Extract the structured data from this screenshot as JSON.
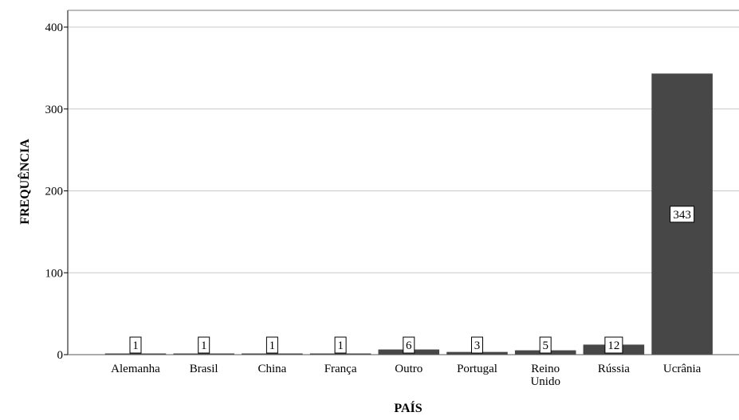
{
  "chart_data": {
    "type": "bar",
    "categories": [
      [
        "Alemanha"
      ],
      [
        "Brasil"
      ],
      [
        "China"
      ],
      [
        "França"
      ],
      [
        "Outro"
      ],
      [
        "Portugal"
      ],
      [
        "Reino",
        "Unido"
      ],
      [
        "Rússia"
      ],
      [
        "Ucrânia"
      ]
    ],
    "values": [
      1,
      1,
      1,
      1,
      6,
      3,
      5,
      12,
      343
    ],
    "data_labels": [
      "1",
      "1",
      "1",
      "1",
      "6",
      "3",
      "5",
      "12",
      "343"
    ],
    "xlabel": "PAÍS",
    "ylabel": "FREQUÊNCIA",
    "ylim": [
      0,
      400
    ],
    "yticks": [
      0,
      100,
      200,
      300,
      400
    ],
    "grid": "horizontal",
    "legend": "none",
    "colors": {
      "bar": "#474747",
      "bar_edge": "#3a3a3a",
      "grid": "#c8c8c8",
      "axis": "#000000"
    }
  }
}
